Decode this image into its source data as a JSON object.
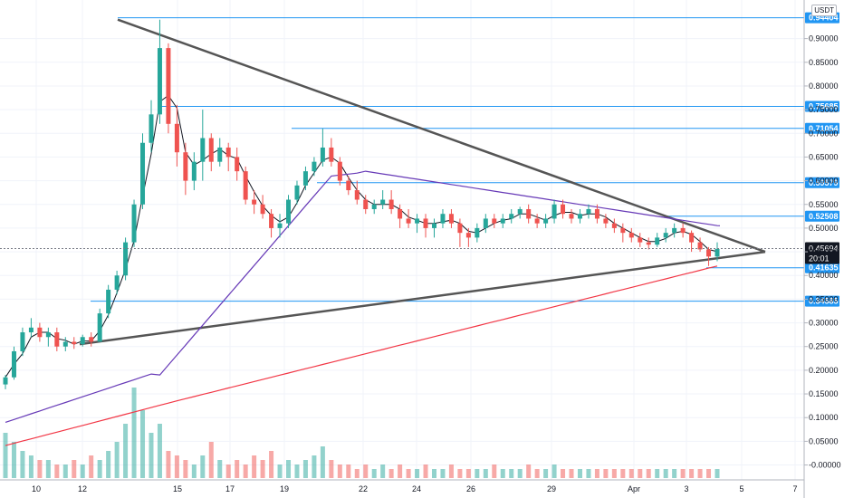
{
  "currency_label": "USDT",
  "current_price": "0.45694",
  "countdown": "20:01",
  "chart_data": {
    "type": "candlestick",
    "y_ticks": [
      "0.90000",
      "0.85000",
      "0.80000",
      "0.75000",
      "0.70000",
      "0.65000",
      "0.60000",
      "0.55000",
      "0.50000",
      "0.45000",
      "0.40000",
      "0.35000",
      "0.30000",
      "0.25000",
      "0.20000",
      "0.15000",
      "0.10000",
      "0.05000",
      "-0.00000"
    ],
    "x_ticks": [
      "10",
      "12",
      "15",
      "17",
      "19",
      "22",
      "24",
      "26",
      "29",
      "Apr",
      "3",
      "5",
      "7"
    ],
    "ylim": [
      -0.02,
      0.97
    ],
    "levels": [
      "0.94404",
      "0.75685",
      "0.71054",
      "0.59579",
      "0.52508",
      "0.41635",
      "0.34585"
    ],
    "grid": true,
    "colors": {
      "up": "#26a69a",
      "down": "#ef5350",
      "level": "#2196f3",
      "ma_fast": "#131722",
      "ma_mid": "#673ab7",
      "ma_slow": "#f23645",
      "trendline": "#555555"
    },
    "candles": [
      [
        0.17,
        0.19,
        0.16,
        0.185
      ],
      [
        0.185,
        0.25,
        0.18,
        0.24
      ],
      [
        0.24,
        0.29,
        0.23,
        0.28
      ],
      [
        0.28,
        0.31,
        0.27,
        0.29
      ],
      [
        0.29,
        0.3,
        0.26,
        0.27
      ],
      [
        0.27,
        0.29,
        0.25,
        0.28
      ],
      [
        0.28,
        0.29,
        0.24,
        0.25
      ],
      [
        0.25,
        0.27,
        0.24,
        0.26
      ],
      [
        0.26,
        0.27,
        0.245,
        0.255
      ],
      [
        0.255,
        0.275,
        0.25,
        0.27
      ],
      [
        0.27,
        0.28,
        0.25,
        0.26
      ],
      [
        0.26,
        0.33,
        0.26,
        0.32
      ],
      [
        0.32,
        0.38,
        0.31,
        0.37
      ],
      [
        0.37,
        0.41,
        0.36,
        0.4
      ],
      [
        0.4,
        0.48,
        0.39,
        0.47
      ],
      [
        0.47,
        0.56,
        0.46,
        0.55
      ],
      [
        0.55,
        0.7,
        0.54,
        0.68
      ],
      [
        0.68,
        0.77,
        0.66,
        0.74
      ],
      [
        0.74,
        0.94,
        0.72,
        0.88
      ],
      [
        0.88,
        0.89,
        0.7,
        0.72
      ],
      [
        0.72,
        0.76,
        0.63,
        0.66
      ],
      [
        0.66,
        0.68,
        0.57,
        0.6
      ],
      [
        0.6,
        0.66,
        0.58,
        0.64
      ],
      [
        0.64,
        0.75,
        0.6,
        0.69
      ],
      [
        0.69,
        0.7,
        0.62,
        0.64
      ],
      [
        0.64,
        0.69,
        0.63,
        0.67
      ],
      [
        0.67,
        0.68,
        0.62,
        0.65
      ],
      [
        0.65,
        0.67,
        0.6,
        0.62
      ],
      [
        0.62,
        0.63,
        0.55,
        0.56
      ],
      [
        0.56,
        0.58,
        0.53,
        0.55
      ],
      [
        0.55,
        0.57,
        0.52,
        0.53
      ],
      [
        0.53,
        0.54,
        0.48,
        0.5
      ],
      [
        0.5,
        0.53,
        0.48,
        0.51
      ],
      [
        0.51,
        0.57,
        0.5,
        0.56
      ],
      [
        0.56,
        0.6,
        0.55,
        0.59
      ],
      [
        0.59,
        0.63,
        0.58,
        0.62
      ],
      [
        0.62,
        0.65,
        0.61,
        0.64
      ],
      [
        0.64,
        0.71,
        0.63,
        0.67
      ],
      [
        0.67,
        0.69,
        0.63,
        0.64
      ],
      [
        0.64,
        0.65,
        0.59,
        0.6
      ],
      [
        0.6,
        0.61,
        0.57,
        0.58
      ],
      [
        0.58,
        0.6,
        0.55,
        0.56
      ],
      [
        0.56,
        0.57,
        0.53,
        0.54
      ],
      [
        0.54,
        0.56,
        0.53,
        0.55
      ],
      [
        0.55,
        0.58,
        0.54,
        0.56
      ],
      [
        0.56,
        0.58,
        0.53,
        0.54
      ],
      [
        0.54,
        0.55,
        0.5,
        0.52
      ],
      [
        0.52,
        0.54,
        0.5,
        0.51
      ],
      [
        0.51,
        0.53,
        0.49,
        0.52
      ],
      [
        0.52,
        0.53,
        0.48,
        0.5
      ],
      [
        0.5,
        0.52,
        0.48,
        0.51
      ],
      [
        0.51,
        0.54,
        0.5,
        0.53
      ],
      [
        0.53,
        0.54,
        0.5,
        0.51
      ],
      [
        0.51,
        0.52,
        0.46,
        0.49
      ],
      [
        0.49,
        0.5,
        0.46,
        0.48
      ],
      [
        0.48,
        0.51,
        0.47,
        0.5
      ],
      [
        0.5,
        0.53,
        0.49,
        0.52
      ],
      [
        0.52,
        0.53,
        0.5,
        0.51
      ],
      [
        0.51,
        0.53,
        0.5,
        0.52
      ],
      [
        0.52,
        0.54,
        0.51,
        0.53
      ],
      [
        0.53,
        0.545,
        0.52,
        0.54
      ],
      [
        0.54,
        0.55,
        0.51,
        0.52
      ],
      [
        0.52,
        0.53,
        0.5,
        0.51
      ],
      [
        0.51,
        0.53,
        0.5,
        0.52
      ],
      [
        0.52,
        0.56,
        0.51,
        0.55
      ],
      [
        0.55,
        0.56,
        0.52,
        0.53
      ],
      [
        0.53,
        0.54,
        0.51,
        0.52
      ],
      [
        0.52,
        0.54,
        0.51,
        0.53
      ],
      [
        0.53,
        0.55,
        0.52,
        0.54
      ],
      [
        0.54,
        0.55,
        0.51,
        0.52
      ],
      [
        0.52,
        0.53,
        0.5,
        0.51
      ],
      [
        0.51,
        0.52,
        0.49,
        0.5
      ],
      [
        0.5,
        0.51,
        0.47,
        0.49
      ],
      [
        0.49,
        0.5,
        0.47,
        0.48
      ],
      [
        0.48,
        0.49,
        0.46,
        0.47
      ],
      [
        0.47,
        0.48,
        0.455,
        0.465
      ],
      [
        0.465,
        0.49,
        0.46,
        0.48
      ],
      [
        0.48,
        0.5,
        0.47,
        0.49
      ],
      [
        0.49,
        0.51,
        0.48,
        0.5
      ],
      [
        0.5,
        0.51,
        0.48,
        0.49
      ],
      [
        0.49,
        0.495,
        0.45,
        0.47
      ],
      [
        0.47,
        0.48,
        0.45,
        0.455
      ],
      [
        0.455,
        0.46,
        0.42,
        0.44
      ],
      [
        0.44,
        0.47,
        0.43,
        0.456
      ]
    ],
    "volumes": [
      0.1,
      0.08,
      0.06,
      0.05,
      0.04,
      0.04,
      0.03,
      0.03,
      0.04,
      0.03,
      0.05,
      0.04,
      0.06,
      0.08,
      0.12,
      0.2,
      0.15,
      0.1,
      0.12,
      0.06,
      0.05,
      0.04,
      0.03,
      0.05,
      0.08,
      0.04,
      0.03,
      0.04,
      0.03,
      0.05,
      0.04,
      0.06,
      0.03,
      0.04,
      0.03,
      0.04,
      0.05,
      0.07,
      0.04,
      0.03,
      0.03,
      0.02,
      0.03,
      0.02,
      0.03,
      0.02,
      0.03,
      0.02,
      0.02,
      0.03,
      0.02,
      0.02,
      0.03,
      0.02,
      0.02,
      0.02,
      0.02,
      0.03,
      0.02,
      0.02,
      0.02,
      0.03,
      0.02,
      0.02,
      0.03,
      0.02,
      0.02,
      0.02,
      0.02,
      0.02,
      0.02,
      0.02,
      0.02,
      0.02,
      0.02,
      0.02,
      0.02,
      0.02,
      0.02,
      0.02,
      0.02,
      0.02,
      0.02,
      0.02
    ]
  }
}
